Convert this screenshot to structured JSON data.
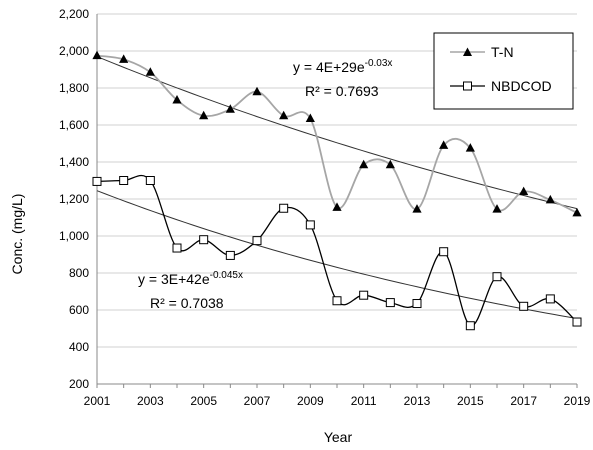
{
  "chart_data": {
    "type": "line",
    "title": "",
    "xlabel": "Year",
    "ylabel": "Conc. (mg/L)",
    "xlim": [
      2001,
      2019
    ],
    "ylim": [
      200,
      2200
    ],
    "x_ticks": [
      "2001",
      "2003",
      "2005",
      "2007",
      "2009",
      "2011",
      "2013",
      "2015",
      "2017",
      "2019"
    ],
    "y_ticks": [
      "200",
      "400",
      "600",
      "800",
      "1,000",
      "1,200",
      "1,400",
      "1,600",
      "1,800",
      "2,000",
      "2,200"
    ],
    "grid": "horizontal",
    "legend": "top-right",
    "x": [
      2001,
      2002,
      2003,
      2004,
      2005,
      2006,
      2007,
      2008,
      2009,
      2010,
      2011,
      2012,
      2013,
      2014,
      2015,
      2016,
      2017,
      2018,
      2019
    ],
    "series": [
      {
        "name": "T-N",
        "marker": "filled-triangle",
        "line_color": "#a6a6a6",
        "values": [
          1975,
          1955,
          1885,
          1735,
          1650,
          1685,
          1780,
          1650,
          1635,
          1155,
          1385,
          1385,
          1145,
          1490,
          1475,
          1145,
          1240,
          1195,
          1125
        ]
      },
      {
        "name": "NBDCOD",
        "marker": "open-square",
        "line_color": "#000000",
        "values": [
          1295,
          1300,
          1300,
          935,
          980,
          895,
          975,
          1150,
          1060,
          650,
          680,
          640,
          635,
          915,
          515,
          780,
          620,
          660,
          535
        ]
      }
    ],
    "trendlines": [
      {
        "series": "T-N",
        "equation_base": "y = 4E+29e",
        "equation_exponent": "-0.03x",
        "r_squared": "R² = 0.7693",
        "k": 0.03,
        "start_value": 1970
      },
      {
        "series": "NBDCOD",
        "equation_base": "y = 3E+42e",
        "equation_exponent": "-0.045x",
        "r_squared": "R² = 0.7038",
        "k": 0.045,
        "start_value": 1245
      }
    ],
    "colors": {
      "trendline": "#333333",
      "grid": "#d0d0d0",
      "axis": "#888888"
    }
  }
}
